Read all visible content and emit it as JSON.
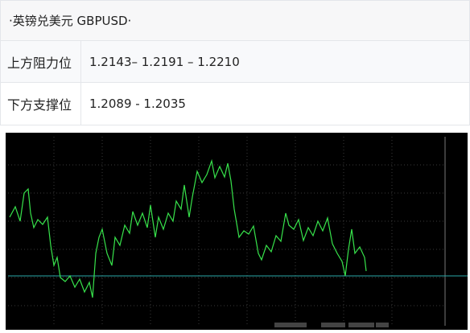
{
  "table": {
    "title": "·英镑兑美元 GBPUSD·",
    "rows": [
      [
        "上方阻力位",
        "1.2143– 1.2191 – 1.2210"
      ],
      [
        "下方支撑位",
        "1.2089 - 1.2035"
      ]
    ]
  }
}
